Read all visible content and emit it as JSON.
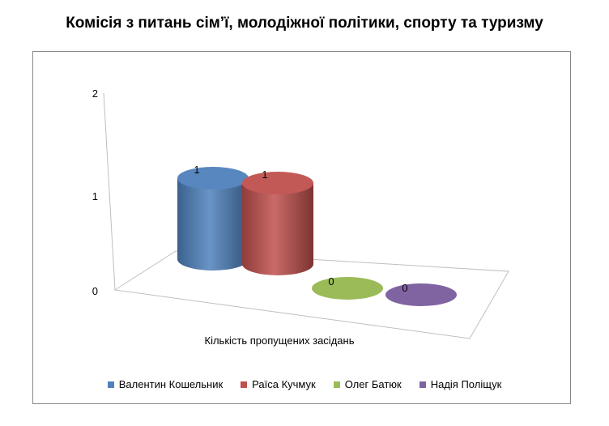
{
  "title": "Комісія з питань сім’ї, молодіжної політики, спорту та туризму",
  "chart_data": {
    "type": "bar",
    "style": "3d-cylinder",
    "categories": [
      "Кількість пропущених засідань"
    ],
    "series": [
      {
        "name": "Валентин Кошельник",
        "values": [
          1
        ],
        "color": "#4f81bd"
      },
      {
        "name": "Раїса Кучмук",
        "values": [
          1
        ],
        "color": "#c0504d"
      },
      {
        "name": "Олег Батюк",
        "values": [
          0
        ],
        "color": "#9bbb59"
      },
      {
        "name": "Надія Поліщук",
        "values": [
          0
        ],
        "color": "#8064a2"
      }
    ],
    "xlabel": "Кількість пропущених засідань",
    "ylabel": "",
    "ylim": [
      0,
      2
    ],
    "yticks": [
      "0",
      "1",
      "2"
    ],
    "grid": false,
    "legend_position": "bottom"
  }
}
